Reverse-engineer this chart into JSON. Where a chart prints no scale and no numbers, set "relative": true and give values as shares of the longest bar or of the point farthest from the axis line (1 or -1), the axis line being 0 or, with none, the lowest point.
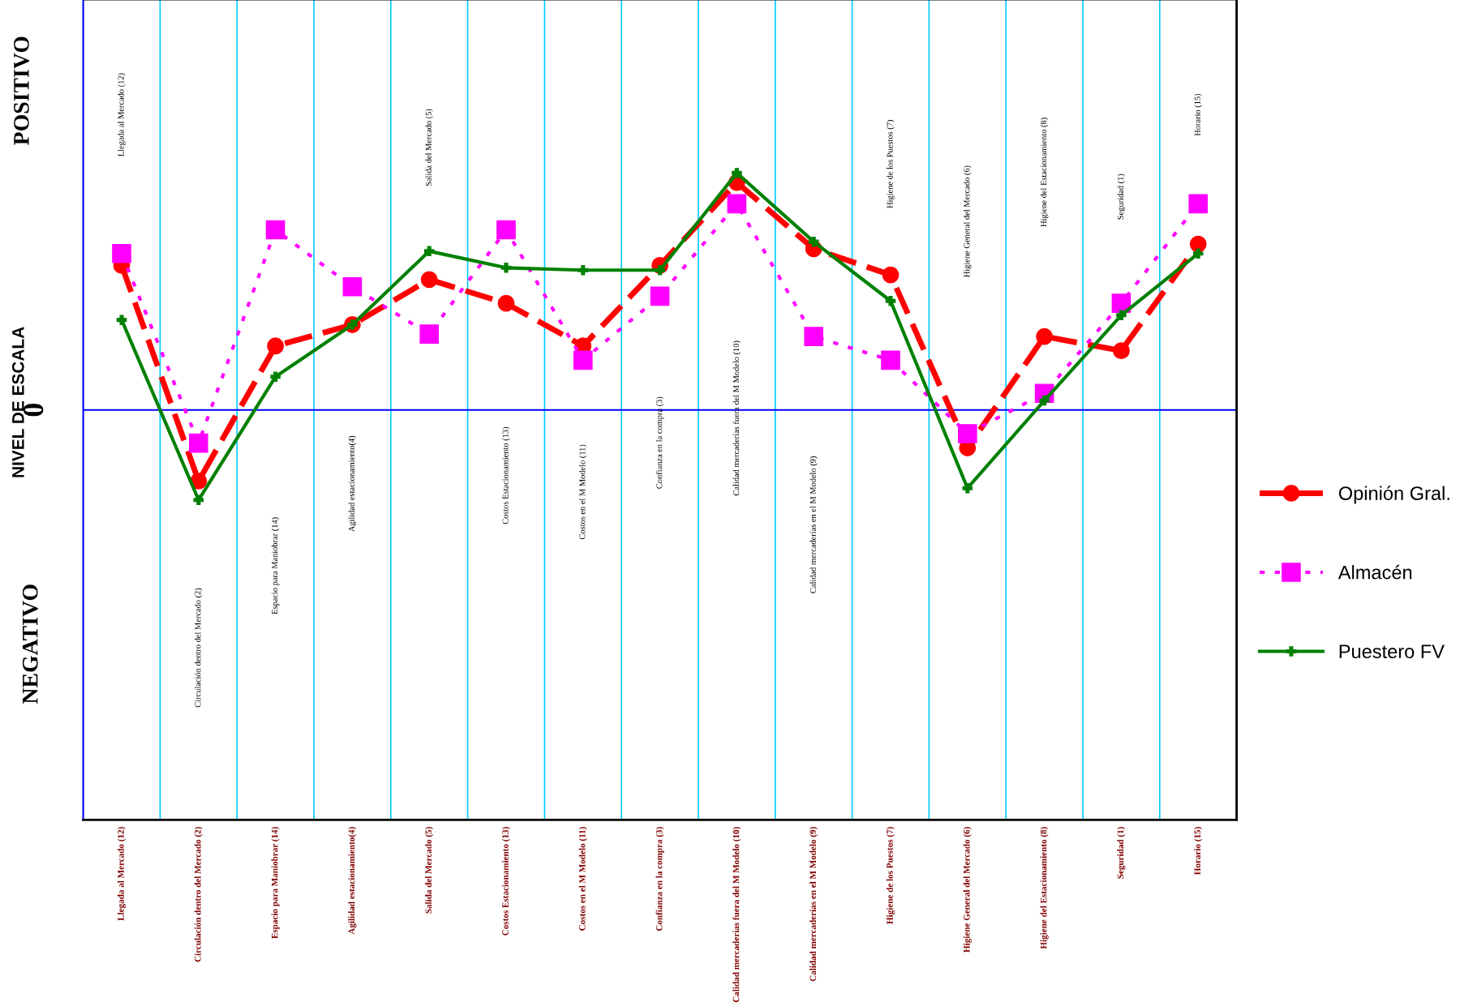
{
  "chart_data": {
    "type": "line",
    "relative": true,
    "ylabel": "NIVEL DE ESCALA",
    "categories": [
      "Llegada al Mercado (12)",
      "Circulación dentro del Mercado (2)",
      "Espacio para Maniobrar (14)",
      "Agilidad estacionamiento(4)",
      "Salida del Mercado (5)",
      "Costos Estacionamiento (13)",
      "Costos en el M Modelo (11)",
      "Confianza en la compra (3)",
      "Calidad mercaderías fuera del M Modelo (10)",
      "Calidad mercaderías en el M Modelo (9)",
      "Higiene de los Puestos (7)",
      "Higiene General del Mercado (6)",
      "Higiene del Estacionamiento (8)",
      "Seguridad (1)",
      "Horario (15)"
    ],
    "series": [
      {
        "name": "Opinión Gral.",
        "color": "#ff0000",
        "marker": "circle",
        "line_style": "dashed",
        "values": [
          0.61,
          -0.3,
          0.27,
          0.36,
          0.55,
          0.45,
          0.27,
          0.61,
          0.96,
          0.68,
          0.57,
          -0.16,
          0.31,
          0.25,
          0.7
        ]
      },
      {
        "name": "Almacén",
        "color": "#ff00ff",
        "marker": "square",
        "line_style": "dotted",
        "values": [
          0.66,
          -0.14,
          0.76,
          0.52,
          0.32,
          0.76,
          0.21,
          0.48,
          0.87,
          0.31,
          0.21,
          -0.1,
          0.07,
          0.45,
          0.87
        ]
      },
      {
        "name": "Puestero FV",
        "color": "#008000",
        "marker": "cross",
        "line_style": "solid",
        "values": [
          0.38,
          -0.38,
          0.14,
          0.36,
          0.67,
          0.6,
          0.59,
          0.59,
          1.0,
          0.71,
          0.46,
          -0.33,
          0.04,
          0.4,
          0.66
        ]
      }
    ],
    "ref_lines": [
      {
        "axis": "y",
        "value": 0,
        "label": "0",
        "color": "#0000ff"
      }
    ],
    "grid": "x",
    "legend": "right",
    "annotations": [
      "POSITIVO",
      "NEGATIVO",
      "Llegada al Mercado (12)",
      "Circulación dentro del Mercado (2)",
      "Espacio para Maniobrar (14)",
      "Agilidad estacionamiento(4)",
      "Salida del Mercado (5)",
      "Costos Estacionamiento (13)",
      "Costos en el M Modelo (11)",
      "Confianza en la compra (3)",
      "Calidad mercaderías fuera del M Modelo (10)",
      "Calidad mercaderías en el M Modelo (9)",
      "Higiene de los Puestos (7)",
      "Higiene General del Mercado (6)",
      "Higiene del Estacionamiento (8)",
      "Seguridad (1)",
      "Horario (15)"
    ]
  }
}
